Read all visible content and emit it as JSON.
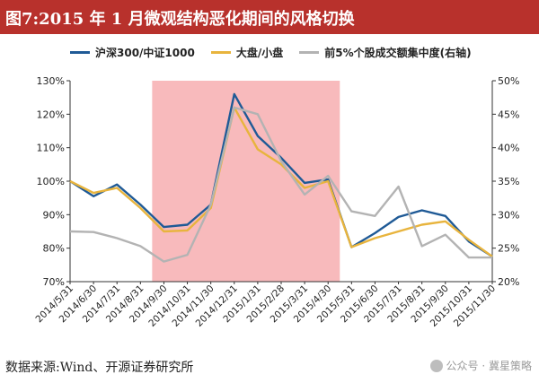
{
  "title": "图7:2015 年 1 月微观结构恶化期间的风格切换",
  "source": "数据来源:Wind、开源证券研究所",
  "watermark": "公众号 · 冀星策略",
  "chart_data": {
    "type": "line",
    "categories": [
      "2014/5/31",
      "2014/6/30",
      "2014/7/31",
      "2014/8/31",
      "2014/9/30",
      "2014/10/31",
      "2014/11/30",
      "2014/12/31",
      "2015/1/31",
      "2015/2/28",
      "2015/3/31",
      "2015/4/30",
      "2015/5/31",
      "2015/6/30",
      "2015/7/31",
      "2015/8/31",
      "2015/9/30",
      "2015/10/31",
      "2015/11/30"
    ],
    "x_tick_labels": [
      "2014/5/31",
      "2014/6/30",
      "2014/7/31",
      "2014/8/31",
      "2014/9/30",
      "2014/10/31",
      "2014/11/30",
      "2014/12/31",
      "2015/1/31",
      "2015/2/28",
      "2015/3/31",
      "2015/4/30",
      "2015/5/31",
      "2015/6/30",
      "2015/7/31",
      "2015/8/31",
      "2015/9/30",
      "2015/10/31",
      "2015/11/30"
    ],
    "x_points": [
      "2014/5/31",
      "2014/6/30",
      "2014/7/31",
      "2014/8/31",
      "2014/9/30",
      "2014/10/31",
      "2014/11/30",
      "2014/12/15",
      "2014/12/31",
      "2015/1/31",
      "2015/2/28",
      "2015/3/31",
      "2015/4/15",
      "2015/4/30",
      "2015/5/31",
      "2015/6/30",
      "2015/7/31",
      "2015/8/31",
      "2015/9/30",
      "2015/10/31",
      "2015/11/30"
    ],
    "series": [
      {
        "name": "沪深300/中证1000",
        "axis": "left",
        "color": "#1f5a96",
        "values": [
          100,
          95.5,
          99,
          93,
          86.3,
          87,
          93,
          126,
          113.5,
          107,
          99.5,
          100.5,
          80.3,
          84.5,
          89.3,
          91.3,
          89.6,
          82,
          77.5
        ]
      },
      {
        "name": "大盘/小盘",
        "axis": "left",
        "color": "#e8b43d",
        "values": [
          100,
          96.5,
          98,
          92,
          85,
          85.3,
          92,
          122,
          109.5,
          105,
          98,
          100,
          80.3,
          83,
          85,
          87,
          88,
          82.5,
          77.5
        ]
      },
      {
        "name": "前5%个股成交额集中度(右轴)",
        "axis": "right",
        "color": "#b3b3b3",
        "values": [
          27.5,
          27.4,
          26.5,
          25.3,
          23,
          24,
          31.5,
          46,
          45,
          38,
          33,
          35.8,
          30.5,
          29.8,
          34.2,
          25.3,
          27,
          23.6,
          23.6
        ]
      }
    ],
    "y_left": {
      "min": 70,
      "max": 130,
      "ticks": [
        "70%",
        "80%",
        "90%",
        "100%",
        "110%",
        "120%",
        "130%"
      ]
    },
    "y_right": {
      "min": 20,
      "max": 50,
      "ticks": [
        "20%",
        "25%",
        "30%",
        "35%",
        "40%",
        "45%",
        "50%"
      ]
    },
    "highlight": {
      "from": "2014/9/15",
      "to": "2015/4/15",
      "color": "#f7b3b5"
    },
    "legend_position": "top",
    "grid": false
  }
}
